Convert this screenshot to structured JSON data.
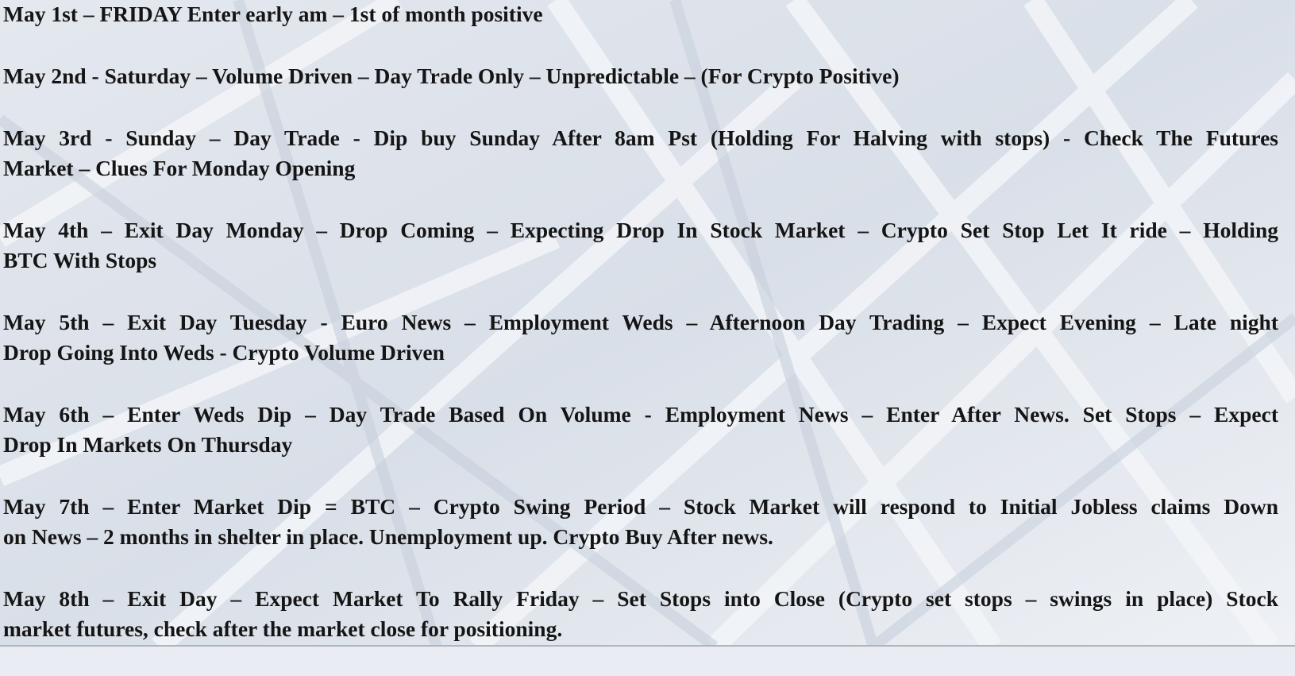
{
  "entries": [
    [
      "May 1st – FRIDAY Enter early am – 1st of month positive"
    ],
    [
      "May 2nd -  Saturday – Volume Driven – Day Trade Only – Unpredictable –  (For Crypto Positive)"
    ],
    [
      "May 3rd  - Sunday – Day Trade - Dip buy Sunday After 8am Pst  (Holding For Halving with stops)  - Check The Futures",
      "Market – Clues For Monday Opening"
    ],
    [
      "May 4th –  Exit Day Monday – Drop Coming – Expecting Drop In Stock Market – Crypto Set Stop Let It ride – Holding",
      "BTC With Stops"
    ],
    [
      "May 5th –  Exit Day Tuesday - Euro News – Employment Weds – Afternoon Day Trading – Expect Evening – Late night",
      "Drop Going Into Weds  - Crypto Volume Driven"
    ],
    [
      "May 6th – Enter Weds Dip – Day Trade Based On Volume  - Employment News – Enter After News.  Set Stops – Expect",
      "Drop In Markets On Thursday"
    ],
    [
      "May 7th –  Enter Market Dip  = BTC – Crypto Swing Period – Stock Market will respond to Initial Jobless claims Down",
      "on News – 2 months in shelter in place.  Unemployment up. Crypto Buy After news."
    ],
    [
      "May 8th – Exit Day – Expect Market To Rally Friday – Set Stops into Close (Crypto set stops – swings in place) Stock",
      "market futures, check after the market close for positioning."
    ]
  ]
}
